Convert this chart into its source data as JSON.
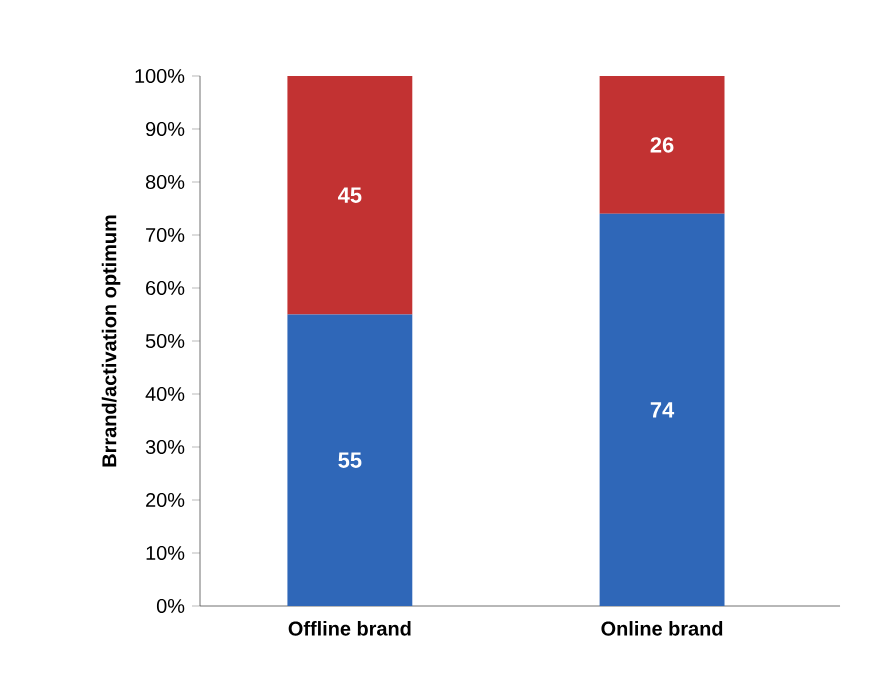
{
  "chart_data": {
    "type": "bar",
    "stacked": true,
    "ylabel": "Brrand/activation optimum",
    "categories": [
      "Offline brand",
      "Online brand"
    ],
    "series": [
      {
        "color": "#2f67b8",
        "values": [
          55,
          74
        ]
      },
      {
        "color": "#c23232",
        "values": [
          45,
          26
        ]
      }
    ],
    "ylim": [
      0,
      100
    ],
    "yticks": [
      {
        "value": 0,
        "label": "0%"
      },
      {
        "value": 10,
        "label": "10%"
      },
      {
        "value": 20,
        "label": "20%"
      },
      {
        "value": 30,
        "label": "30%"
      },
      {
        "value": 40,
        "label": "40%"
      },
      {
        "value": 50,
        "label": "50%"
      },
      {
        "value": 60,
        "label": "60%"
      },
      {
        "value": 70,
        "label": "70%"
      },
      {
        "value": 80,
        "label": "80%"
      },
      {
        "value": 90,
        "label": "90%"
      },
      {
        "value": 100,
        "label": "100%"
      }
    ],
    "data_labels": true
  }
}
